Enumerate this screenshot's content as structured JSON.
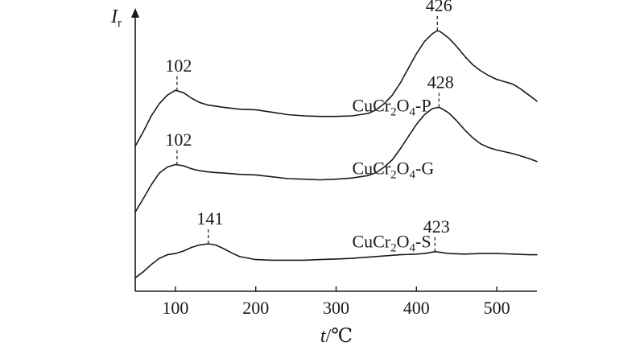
{
  "chart_data": {
    "type": "line",
    "xlabel_var": "t",
    "xlabel_unit": "/℃",
    "ylabel_var": "I",
    "ylabel_sub": "r",
    "xlim": [
      50,
      550
    ],
    "xticks": [
      100,
      200,
      300,
      400,
      500
    ],
    "y_ticks_shown": false,
    "grid": false,
    "series": [
      {
        "name_base": "CuCr",
        "name_sub1": "2",
        "name_mid": "O",
        "name_sub2": "4",
        "name_suffix": "-P",
        "offset": 2.0,
        "label_x": 320,
        "label_y": 2.75,
        "x": [
          50,
          60,
          70,
          80,
          90,
          100,
          110,
          120,
          130,
          140,
          150,
          160,
          180,
          200,
          220,
          240,
          260,
          280,
          300,
          320,
          340,
          350,
          360,
          370,
          380,
          390,
          400,
          410,
          420,
          426,
          430,
          440,
          450,
          460,
          470,
          480,
          490,
          500,
          510,
          520,
          530,
          540,
          550
        ],
        "y": [
          0.18,
          0.42,
          0.68,
          0.88,
          1.02,
          1.1,
          1.06,
          0.97,
          0.9,
          0.86,
          0.84,
          0.82,
          0.79,
          0.78,
          0.74,
          0.7,
          0.68,
          0.67,
          0.67,
          0.68,
          0.72,
          0.78,
          0.88,
          1.02,
          1.22,
          1.46,
          1.7,
          1.9,
          2.03,
          2.08,
          2.06,
          1.96,
          1.82,
          1.66,
          1.52,
          1.42,
          1.34,
          1.28,
          1.24,
          1.2,
          1.12,
          1.02,
          0.92
        ]
      },
      {
        "name_base": "CuCr",
        "name_sub1": "2",
        "name_mid": "O",
        "name_sub2": "4",
        "name_suffix": "-G",
        "offset": 1.0,
        "label_x": 320,
        "label_y": 1.72,
        "x": [
          50,
          60,
          70,
          80,
          90,
          100,
          110,
          120,
          130,
          140,
          150,
          160,
          180,
          200,
          220,
          240,
          260,
          280,
          300,
          320,
          340,
          350,
          360,
          370,
          380,
          390,
          400,
          410,
          420,
          428,
          430,
          440,
          450,
          460,
          470,
          480,
          490,
          500,
          510,
          520,
          530,
          540,
          550
        ],
        "y": [
          0.1,
          0.32,
          0.55,
          0.74,
          0.84,
          0.88,
          0.86,
          0.81,
          0.78,
          0.76,
          0.75,
          0.74,
          0.72,
          0.71,
          0.68,
          0.65,
          0.64,
          0.63,
          0.64,
          0.66,
          0.7,
          0.75,
          0.84,
          0.96,
          1.14,
          1.34,
          1.54,
          1.7,
          1.8,
          1.82,
          1.81,
          1.73,
          1.6,
          1.45,
          1.32,
          1.22,
          1.16,
          1.12,
          1.09,
          1.06,
          1.02,
          0.98,
          0.93
        ]
      },
      {
        "name_base": "CuCr",
        "name_sub1": "2",
        "name_mid": "O",
        "name_sub2": "4",
        "name_suffix": "-S",
        "offset": 0.0,
        "label_x": 320,
        "label_y": 0.52,
        "x": [
          50,
          60,
          70,
          80,
          90,
          100,
          110,
          120,
          130,
          141,
          150,
          160,
          170,
          180,
          200,
          220,
          240,
          260,
          280,
          300,
          320,
          340,
          360,
          380,
          400,
          410,
          423,
          430,
          440,
          460,
          480,
          500,
          520,
          540,
          550
        ],
        "y": [
          0.02,
          0.12,
          0.24,
          0.34,
          0.4,
          0.42,
          0.46,
          0.52,
          0.56,
          0.58,
          0.56,
          0.5,
          0.43,
          0.37,
          0.32,
          0.31,
          0.31,
          0.31,
          0.32,
          0.33,
          0.34,
          0.36,
          0.38,
          0.4,
          0.41,
          0.42,
          0.45,
          0.44,
          0.42,
          0.41,
          0.42,
          0.42,
          0.41,
          0.4,
          0.4
        ]
      }
    ],
    "peaks": [
      {
        "label": "426",
        "series": 0,
        "x": 426
      },
      {
        "label": "102",
        "series": 0,
        "x": 102
      },
      {
        "label": "428",
        "series": 1,
        "x": 428
      },
      {
        "label": "102",
        "series": 1,
        "x": 102
      },
      {
        "label": "141",
        "series": 2,
        "x": 141
      },
      {
        "label": "423",
        "series": 2,
        "x": 423
      }
    ]
  }
}
